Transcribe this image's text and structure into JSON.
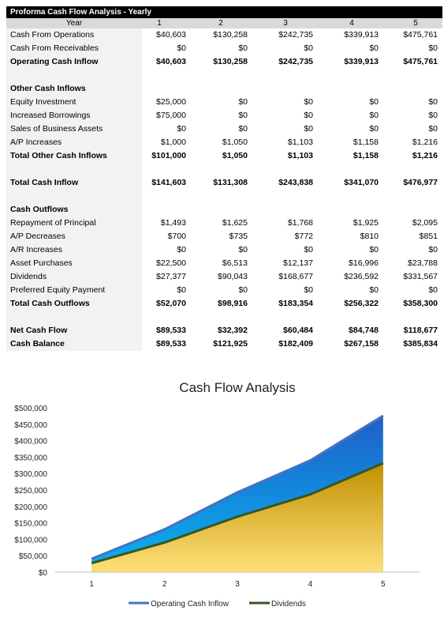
{
  "sheet_title": "Proforma Cash Flow Analysis - Yearly",
  "header": {
    "label": "Year",
    "years": [
      "1",
      "2",
      "3",
      "4",
      "5"
    ]
  },
  "rows": [
    {
      "label": "Cash From Operations",
      "values": [
        "$40,603",
        "$130,258",
        "$242,735",
        "$339,913",
        "$475,761"
      ]
    },
    {
      "label": "Cash From Receivables",
      "values": [
        "$0",
        "$0",
        "$0",
        "$0",
        "$0"
      ]
    },
    {
      "label": "Operating Cash Inflow",
      "values": [
        "$40,603",
        "$130,258",
        "$242,735",
        "$339,913",
        "$475,761"
      ],
      "bold": true
    },
    {
      "label": "",
      "values": [
        "",
        "",
        "",
        "",
        ""
      ]
    },
    {
      "label": "Other Cash Inflows",
      "values": [
        "",
        "",
        "",
        "",
        ""
      ],
      "bold": true
    },
    {
      "label": "Equity Investment",
      "values": [
        "$25,000",
        "$0",
        "$0",
        "$0",
        "$0"
      ]
    },
    {
      "label": "Increased Borrowings",
      "values": [
        "$75,000",
        "$0",
        "$0",
        "$0",
        "$0"
      ]
    },
    {
      "label": "Sales of Business Assets",
      "values": [
        "$0",
        "$0",
        "$0",
        "$0",
        "$0"
      ]
    },
    {
      "label": "A/P Increases",
      "values": [
        "$1,000",
        "$1,050",
        "$1,103",
        "$1,158",
        "$1,216"
      ]
    },
    {
      "label": "Total Other Cash Inflows",
      "values": [
        "$101,000",
        "$1,050",
        "$1,103",
        "$1,158",
        "$1,216"
      ],
      "bold": true
    },
    {
      "label": "",
      "values": [
        "",
        "",
        "",
        "",
        ""
      ]
    },
    {
      "label": "Total Cash Inflow",
      "values": [
        "$141,603",
        "$131,308",
        "$243,838",
        "$341,070",
        "$476,977"
      ],
      "bold": true
    },
    {
      "label": "",
      "values": [
        "",
        "",
        "",
        "",
        ""
      ]
    },
    {
      "label": "Cash Outflows",
      "values": [
        "",
        "",
        "",
        "",
        ""
      ],
      "bold": true
    },
    {
      "label": "Repayment of Principal",
      "values": [
        "$1,493",
        "$1,625",
        "$1,768",
        "$1,925",
        "$2,095"
      ]
    },
    {
      "label": "A/P Decreases",
      "values": [
        "$700",
        "$735",
        "$772",
        "$810",
        "$851"
      ]
    },
    {
      "label": "A/R Increases",
      "values": [
        "$0",
        "$0",
        "$0",
        "$0",
        "$0"
      ]
    },
    {
      "label": "Asset Purchases",
      "values": [
        "$22,500",
        "$6,513",
        "$12,137",
        "$16,996",
        "$23,788"
      ]
    },
    {
      "label": "Dividends",
      "values": [
        "$27,377",
        "$90,043",
        "$168,677",
        "$236,592",
        "$331,567"
      ]
    },
    {
      "label": "Preferred Equity Payment",
      "values": [
        "$0",
        "$0",
        "$0",
        "$0",
        "$0"
      ]
    },
    {
      "label": "Total Cash Outflows",
      "values": [
        "$52,070",
        "$98,916",
        "$183,354",
        "$256,322",
        "$358,300"
      ],
      "bold": true
    },
    {
      "label": "",
      "values": [
        "",
        "",
        "",
        "",
        ""
      ]
    },
    {
      "label": "Net Cash Flow",
      "values": [
        "$89,533",
        "$32,392",
        "$60,484",
        "$84,748",
        "$118,677"
      ],
      "bold": true
    },
    {
      "label": "Cash Balance",
      "values": [
        "$89,533",
        "$121,925",
        "$182,409",
        "$267,158",
        "$385,834"
      ],
      "bold": true
    }
  ],
  "chart_data": {
    "type": "area",
    "title": "Cash Flow Analysis",
    "x": [
      1,
      2,
      3,
      4,
      5
    ],
    "x_tick_labels": [
      "1",
      "2",
      "3",
      "4",
      "5"
    ],
    "y_tick_labels": [
      "$0",
      "$50,000",
      "$100,000",
      "$150,000",
      "$200,000",
      "$250,000",
      "$300,000",
      "$350,000",
      "$400,000",
      "$450,000",
      "$500,000"
    ],
    "ylim": [
      0,
      500000
    ],
    "series": [
      {
        "name": "Operating Cash Inflow",
        "values": [
          40603,
          130258,
          242735,
          339913,
          475761
        ],
        "line_color": "#4472c4",
        "fill_top": "#1f5fc8",
        "fill_bottom": "#08b4f0"
      },
      {
        "name": "Dividends",
        "values": [
          27377,
          90043,
          168677,
          236592,
          331567
        ],
        "line_color": "#375623",
        "fill_top": "#c09000",
        "fill_bottom": "#ffe07a"
      }
    ],
    "legend_position": "bottom",
    "grid": false
  }
}
